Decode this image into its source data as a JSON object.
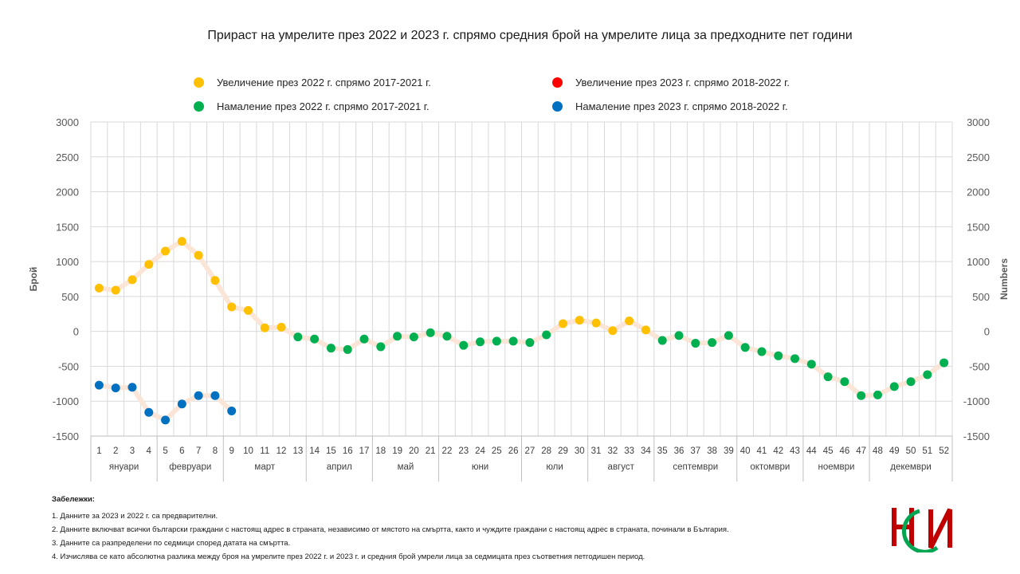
{
  "title": "Прираст на умрелите през 2022 и 2023 г. спрямо средния брой на умрелите лица за предходните пет години",
  "legend": [
    {
      "label": "Увеличение през 2022 г. спрямо 2017-2021 г.",
      "color": "#ffc000"
    },
    {
      "label": "Увеличение през 2023 г. спрямо 2018-2022 г.",
      "color": "#ff0000"
    },
    {
      "label": "Намаление през 2022 г. спрямо 2017-2021 г.",
      "color": "#00b050"
    },
    {
      "label": "Намаление през 2023 г. спрямо 2018-2022 г.",
      "color": "#0070c0"
    }
  ],
  "chart_data": {
    "type": "line",
    "ylabel_left": "Брой",
    "ylabel_right": "Numbers",
    "ylim": [
      -1500,
      3000
    ],
    "yticks": [
      3000,
      2500,
      2000,
      1500,
      1000,
      500,
      0,
      -500,
      -1000,
      -1500
    ],
    "weeks": [
      "1",
      "2",
      "3",
      "4",
      "5",
      "6",
      "7",
      "8",
      "9",
      "10",
      "11",
      "12",
      "13",
      "14",
      "15",
      "16",
      "17",
      "18",
      "19",
      "20",
      "21",
      "22",
      "23",
      "24",
      "25",
      "26",
      "27",
      "28",
      "29",
      "30",
      "31",
      "32",
      "33",
      "34",
      "35",
      "36",
      "37",
      "38",
      "39",
      "40",
      "41",
      "42",
      "43",
      "44",
      "45",
      "46",
      "47",
      "48",
      "49",
      "50",
      "51",
      "52"
    ],
    "months": [
      {
        "label": "януари",
        "start": 1,
        "end": 4
      },
      {
        "label": "февруари",
        "start": 5,
        "end": 8
      },
      {
        "label": "март",
        "start": 9,
        "end": 13
      },
      {
        "label": "април",
        "start": 14,
        "end": 17
      },
      {
        "label": "май",
        "start": 18,
        "end": 21
      },
      {
        "label": "юни",
        "start": 22,
        "end": 26
      },
      {
        "label": "юли",
        "start": 27,
        "end": 30
      },
      {
        "label": "август",
        "start": 31,
        "end": 34
      },
      {
        "label": "септември",
        "start": 35,
        "end": 39
      },
      {
        "label": "октомври",
        "start": 40,
        "end": 43
      },
      {
        "label": "ноември",
        "start": 44,
        "end": 47
      },
      {
        "label": "декември",
        "start": 48,
        "end": 52
      }
    ],
    "series": [
      {
        "name": "2022",
        "values": [
          620,
          590,
          740,
          960,
          1150,
          1290,
          1090,
          730,
          350,
          300,
          50,
          60,
          -80,
          -110,
          -240,
          -260,
          -110,
          -220,
          -70,
          -80,
          -20,
          -70,
          -200,
          -150,
          -140,
          -140,
          -160,
          -50,
          110,
          160,
          120,
          10,
          150,
          20,
          -130,
          -60,
          -170,
          -160,
          -60,
          -230,
          -290,
          -350,
          -390,
          -470,
          -650,
          -720,
          -920,
          -910,
          -790,
          -720,
          -620,
          -450
        ]
      },
      {
        "name": "2023",
        "values": [
          -770,
          -810,
          -800,
          -1160,
          -1270,
          -1040,
          -920,
          -920,
          -1140
        ]
      }
    ]
  },
  "notes": {
    "heading": "Забележки:",
    "items": [
      "1. Данните за 2023 и 2022 г. са предварителни.",
      "2. Данните включват всички български граждани с настоящ адрес в страната, независимо от мястото на смъртта, както и чуждите граждани с настоящ адрес в страната, починали в България.",
      "3. Данните са разпределени по седмици според датата на смъртта.",
      "4. Изчислява се като абсолютна разлика между броя на умрелите през 2022 г. и 2023 г. и  средния брой умрели лица за седмицата през съответния петгодишен период."
    ]
  },
  "logo": {
    "text": "НСИ",
    "colors": [
      "#c00000",
      "#00a651"
    ]
  }
}
